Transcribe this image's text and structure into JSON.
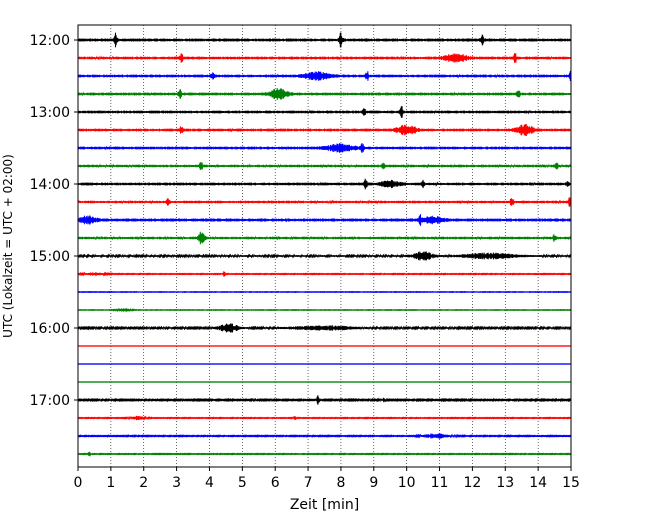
{
  "chart_data": {
    "type": "line",
    "title": "",
    "xlabel": "Zeit  [min]",
    "ylabel": "UTC (Lokalzeit = UTC + 02:00)",
    "xlim": [
      0,
      15
    ],
    "x_ticks": [
      "0",
      "1",
      "2",
      "3",
      "4",
      "5",
      "6",
      "7",
      "8",
      "9",
      "10",
      "11",
      "12",
      "13",
      "14",
      "15"
    ],
    "y_tick_labels": [
      "12:00",
      "13:00",
      "14:00",
      "15:00",
      "16:00",
      "17:00"
    ],
    "grid": "vertical dotted lines at each minute",
    "trace_colors": [
      "#000000",
      "#ff0000",
      "#0000ff",
      "#008000"
    ],
    "traces": [
      {
        "start": "12:00",
        "color": "#000000",
        "noise": 0.22,
        "events": [
          {
            "x": 1.15,
            "amp": 0.9,
            "width": 0.05
          },
          {
            "x": 8.0,
            "amp": 1.0,
            "width": 0.05
          },
          {
            "x": 12.3,
            "amp": 0.6,
            "width": 0.04
          }
        ]
      },
      {
        "start": "12:15",
        "color": "#ff0000",
        "noise": 0.2,
        "events": [
          {
            "x": 3.15,
            "amp": 0.8,
            "width": 0.04
          },
          {
            "x": 11.5,
            "amp": 0.6,
            "width": 0.3
          },
          {
            "x": 13.3,
            "amp": 0.7,
            "width": 0.04
          }
        ]
      },
      {
        "start": "12:30",
        "color": "#0000ff",
        "noise": 0.2,
        "events": [
          {
            "x": 4.1,
            "amp": 0.4,
            "width": 0.05
          },
          {
            "x": 7.3,
            "amp": 0.5,
            "width": 0.4
          },
          {
            "x": 8.8,
            "amp": 0.7,
            "width": 0.04
          },
          {
            "x": 15.0,
            "amp": 0.8,
            "width": 0.04
          }
        ]
      },
      {
        "start": "12:45",
        "color": "#008000",
        "noise": 0.2,
        "events": [
          {
            "x": 3.1,
            "amp": 0.7,
            "width": 0.04
          },
          {
            "x": 6.1,
            "amp": 0.7,
            "width": 0.25
          },
          {
            "x": 13.4,
            "amp": 0.7,
            "width": 0.04
          }
        ]
      },
      {
        "start": "13:00",
        "color": "#000000",
        "noise": 0.2,
        "events": [
          {
            "x": 8.7,
            "amp": 0.8,
            "width": 0.04
          },
          {
            "x": 9.85,
            "amp": 0.9,
            "width": 0.04
          }
        ]
      },
      {
        "start": "13:15",
        "color": "#ff0000",
        "noise": 0.2,
        "events": [
          {
            "x": 3.15,
            "amp": 0.7,
            "width": 0.04
          },
          {
            "x": 10.0,
            "amp": 0.6,
            "width": 0.3
          },
          {
            "x": 13.6,
            "amp": 0.7,
            "width": 0.25
          }
        ]
      },
      {
        "start": "13:30",
        "color": "#0000ff",
        "noise": 0.2,
        "events": [
          {
            "x": 8.0,
            "amp": 0.5,
            "width": 0.4
          },
          {
            "x": 8.65,
            "amp": 0.7,
            "width": 0.04
          }
        ]
      },
      {
        "start": "13:45",
        "color": "#008000",
        "noise": 0.18,
        "events": [
          {
            "x": 3.75,
            "amp": 0.8,
            "width": 0.04
          },
          {
            "x": 9.3,
            "amp": 0.4,
            "width": 0.04
          },
          {
            "x": 14.55,
            "amp": 0.7,
            "width": 0.04
          }
        ]
      },
      {
        "start": "14:00",
        "color": "#000000",
        "noise": 0.2,
        "events": [
          {
            "x": 8.75,
            "amp": 0.8,
            "width": 0.04
          },
          {
            "x": 9.5,
            "amp": 0.4,
            "width": 0.3
          },
          {
            "x": 10.5,
            "amp": 0.5,
            "width": 0.04
          },
          {
            "x": 14.9,
            "amp": 0.5,
            "width": 0.04
          }
        ]
      },
      {
        "start": "14:15",
        "color": "#ff0000",
        "noise": 0.18,
        "events": [
          {
            "x": 2.75,
            "amp": 0.7,
            "width": 0.04
          },
          {
            "x": 13.2,
            "amp": 0.7,
            "width": 0.04
          },
          {
            "x": 14.95,
            "amp": 0.6,
            "width": 0.04
          }
        ]
      },
      {
        "start": "14:30",
        "color": "#0000ff",
        "noise": 0.22,
        "events": [
          {
            "x": 0.3,
            "amp": 0.5,
            "width": 0.25
          },
          {
            "x": 10.4,
            "amp": 0.7,
            "width": 0.04
          },
          {
            "x": 10.8,
            "amp": 0.4,
            "width": 0.3
          }
        ]
      },
      {
        "start": "14:45",
        "color": "#008000",
        "noise": 0.18,
        "events": [
          {
            "x": 3.75,
            "amp": 0.8,
            "width": 0.1
          },
          {
            "x": 14.5,
            "amp": 0.5,
            "width": 0.04
          }
        ]
      },
      {
        "start": "15:00",
        "color": "#000000",
        "noise": 0.12,
        "events": [
          {
            "x": 10.5,
            "amp": 0.6,
            "width": 0.3
          },
          {
            "x": 12.5,
            "amp": 0.4,
            "width": 0.8
          }
        ]
      },
      {
        "start": "15:15",
        "color": "#ff0000",
        "noise": 0.05,
        "events": [
          {
            "x": 0.5,
            "amp": 0.2,
            "width": 0.3
          },
          {
            "x": 4.45,
            "amp": 0.4,
            "width": 0.04
          }
        ]
      },
      {
        "start": "15:30",
        "color": "#0000ff",
        "noise": 0.03,
        "events": []
      },
      {
        "start": "15:45",
        "color": "#008000",
        "noise": 0.03,
        "events": [
          {
            "x": 1.4,
            "amp": 0.25,
            "width": 0.2
          }
        ]
      },
      {
        "start": "16:00",
        "color": "#000000",
        "noise": 0.1,
        "events": [
          {
            "x": 4.6,
            "amp": 0.6,
            "width": 0.3
          },
          {
            "x": 7.5,
            "amp": 0.3,
            "width": 1.0
          }
        ]
      },
      {
        "start": "16:15",
        "color": "#ff0000",
        "noise": 0.02,
        "events": []
      },
      {
        "start": "16:30",
        "color": "#0000ff",
        "noise": 0.02,
        "events": []
      },
      {
        "start": "16:45",
        "color": "#008000",
        "noise": 0.02,
        "events": []
      },
      {
        "start": "17:00",
        "color": "#000000",
        "noise": 0.08,
        "events": [
          {
            "x": 7.3,
            "amp": 0.8,
            "width": 0.04
          },
          {
            "x": 9.3,
            "amp": 0.3,
            "width": 0.04
          }
        ]
      },
      {
        "start": "17:15",
        "color": "#ff0000",
        "noise": 0.05,
        "events": [
          {
            "x": 1.8,
            "amp": 0.3,
            "width": 0.2
          },
          {
            "x": 6.6,
            "amp": 0.3,
            "width": 0.04
          }
        ]
      },
      {
        "start": "17:30",
        "color": "#0000ff",
        "noise": 0.06,
        "events": [
          {
            "x": 10.9,
            "amp": 0.35,
            "width": 0.4
          }
        ]
      },
      {
        "start": "17:45",
        "color": "#008000",
        "noise": 0.05,
        "events": [
          {
            "x": 0.35,
            "amp": 0.35,
            "width": 0.04
          }
        ]
      }
    ]
  }
}
